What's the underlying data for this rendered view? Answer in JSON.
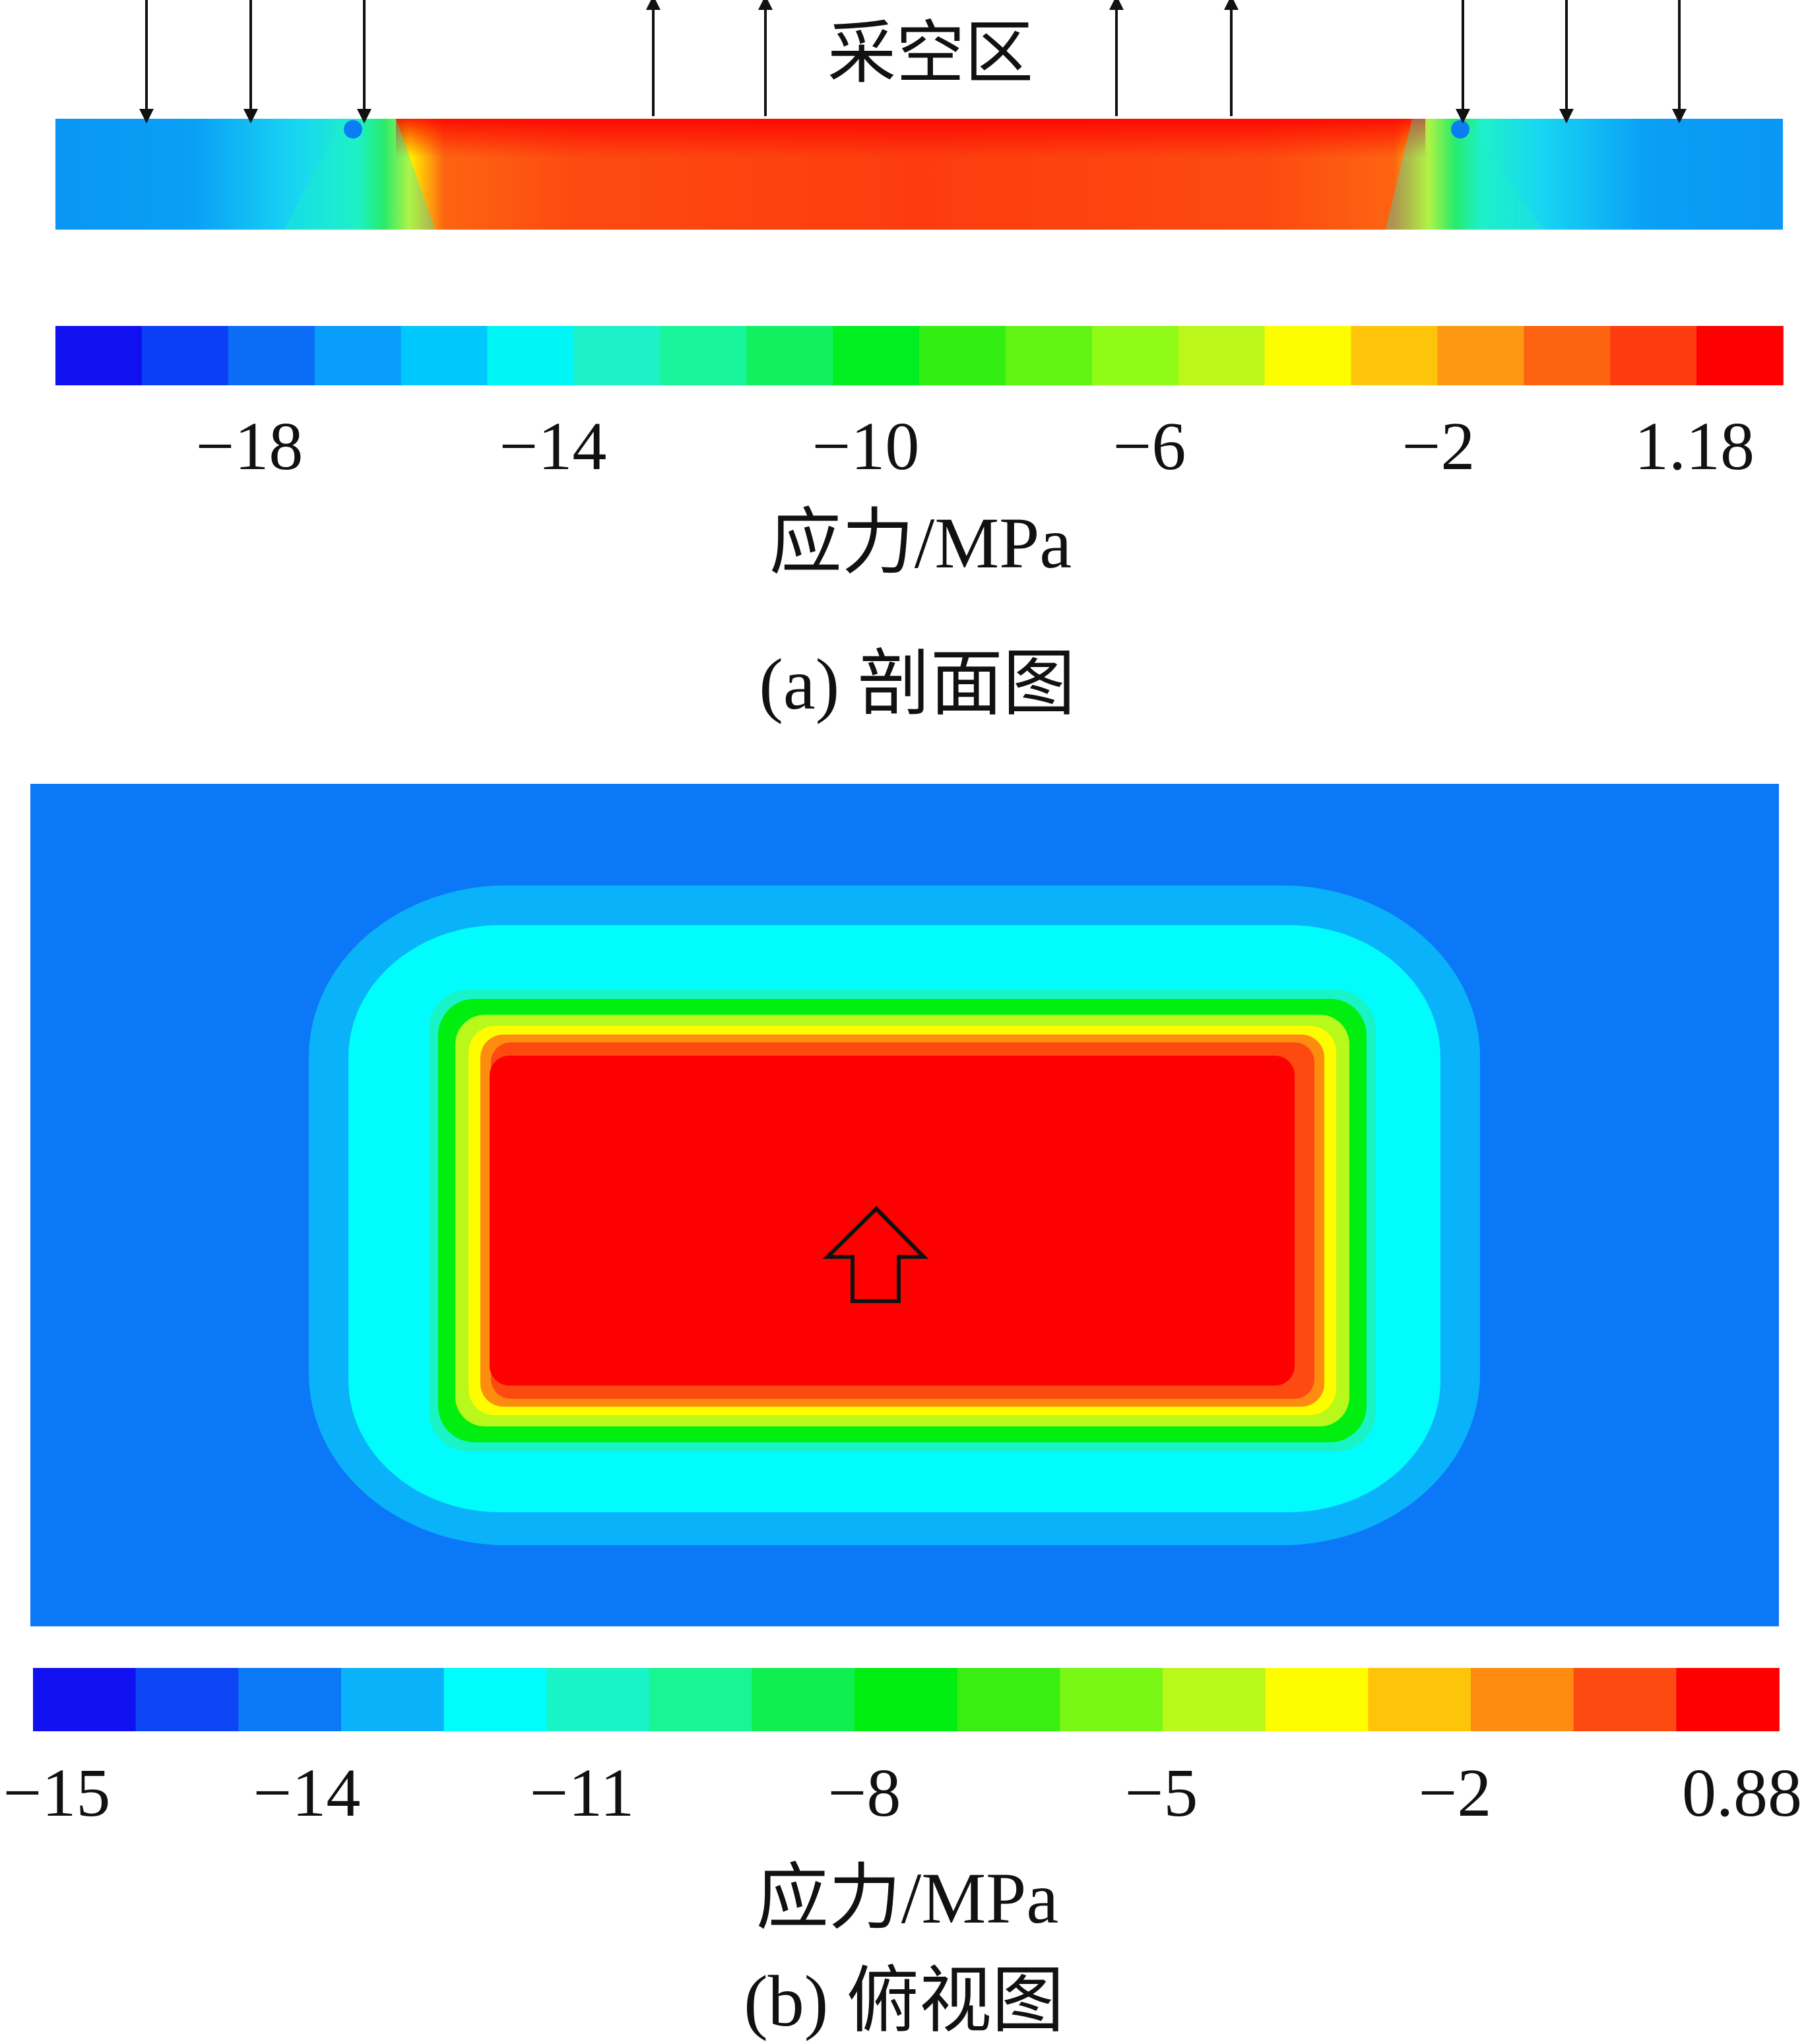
{
  "section": {
    "zone_label": "采空区",
    "caption": "(a)  剖面图",
    "legend": {
      "unit_label": "应力/MPa",
      "colors": [
        "#1010f0",
        "#0b3ef5",
        "#0b6cf6",
        "#0a9cfa",
        "#00c8fd",
        "#00f6f6",
        "#1ef1c8",
        "#18f59a",
        "#12f060",
        "#00ef21",
        "#32ee12",
        "#5ff414",
        "#8efa16",
        "#bbf71a",
        "#fefd00",
        "#fec40a",
        "#fc9812",
        "#fd6412",
        "#fd3c0e",
        "#fd0000"
      ],
      "ticks": [
        "−18",
        "−14",
        "−10",
        "−6",
        "−2",
        "1.18"
      ]
    },
    "arrows": [
      "down",
      "down",
      "down",
      "up",
      "up",
      "up",
      "up",
      "down",
      "down",
      "down"
    ]
  },
  "plan": {
    "caption": "(b)  俯视图",
    "legend": {
      "unit_label": "应力/MPa",
      "colors": [
        "#1010f0",
        "#0c45f3",
        "#0b78f7",
        "#0ab2f9",
        "#00fcfc",
        "#18f4c6",
        "#18f592",
        "#0ff050",
        "#00ef10",
        "#38ee12",
        "#78f814",
        "#b8f81a",
        "#fefd00",
        "#fec40a",
        "#fd8c10",
        "#fd4a10",
        "#fd0000"
      ],
      "ticks": [
        "−15",
        "−14",
        "−11",
        "−8",
        "−5",
        "−2",
        "0.88"
      ]
    },
    "arrow": "up"
  }
}
